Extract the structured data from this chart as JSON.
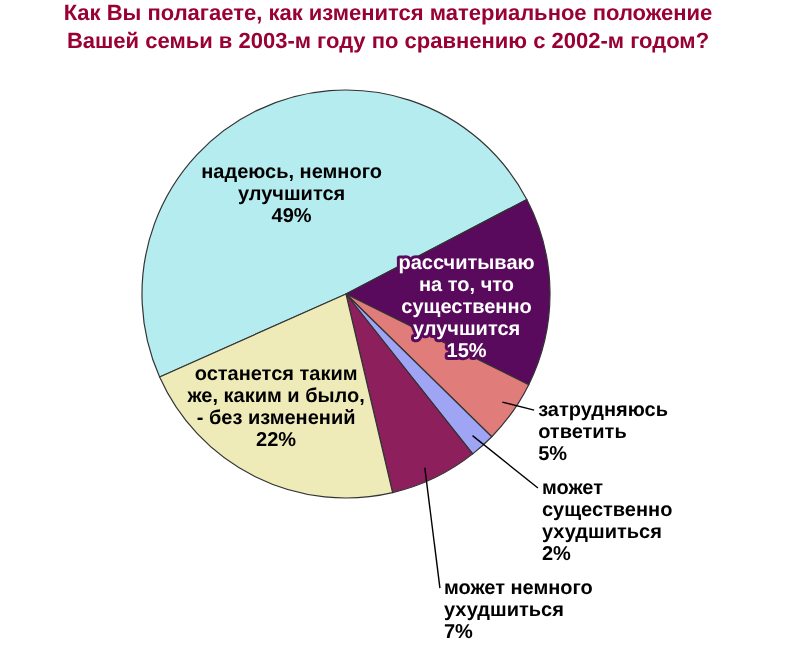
{
  "chart_data": {
    "type": "pie",
    "title": "Как Вы полагаете, как изменится материальное положение Вашей семьи в 2003-м году по сравнению с 2002-м годом?",
    "categories": [
      "надеюсь, немного улучшится",
      "рассчитываю на то, что существенно улучшится",
      "затрудняюсь ответить",
      "может существенно ухудшиться",
      "может немного ухудшиться",
      "останется таким же, каким и было, - без изменений"
    ],
    "values": [
      49,
      15,
      5,
      2,
      7,
      22
    ],
    "value_labels": [
      "49%",
      "15%",
      "5%",
      "2%",
      "7%",
      "22%"
    ],
    "colors": [
      "#b5ecf0",
      "#5a0a5c",
      "#e07c7a",
      "#a0a4f4",
      "#8c1f5c",
      "#efebb8"
    ],
    "legend": false
  }
}
